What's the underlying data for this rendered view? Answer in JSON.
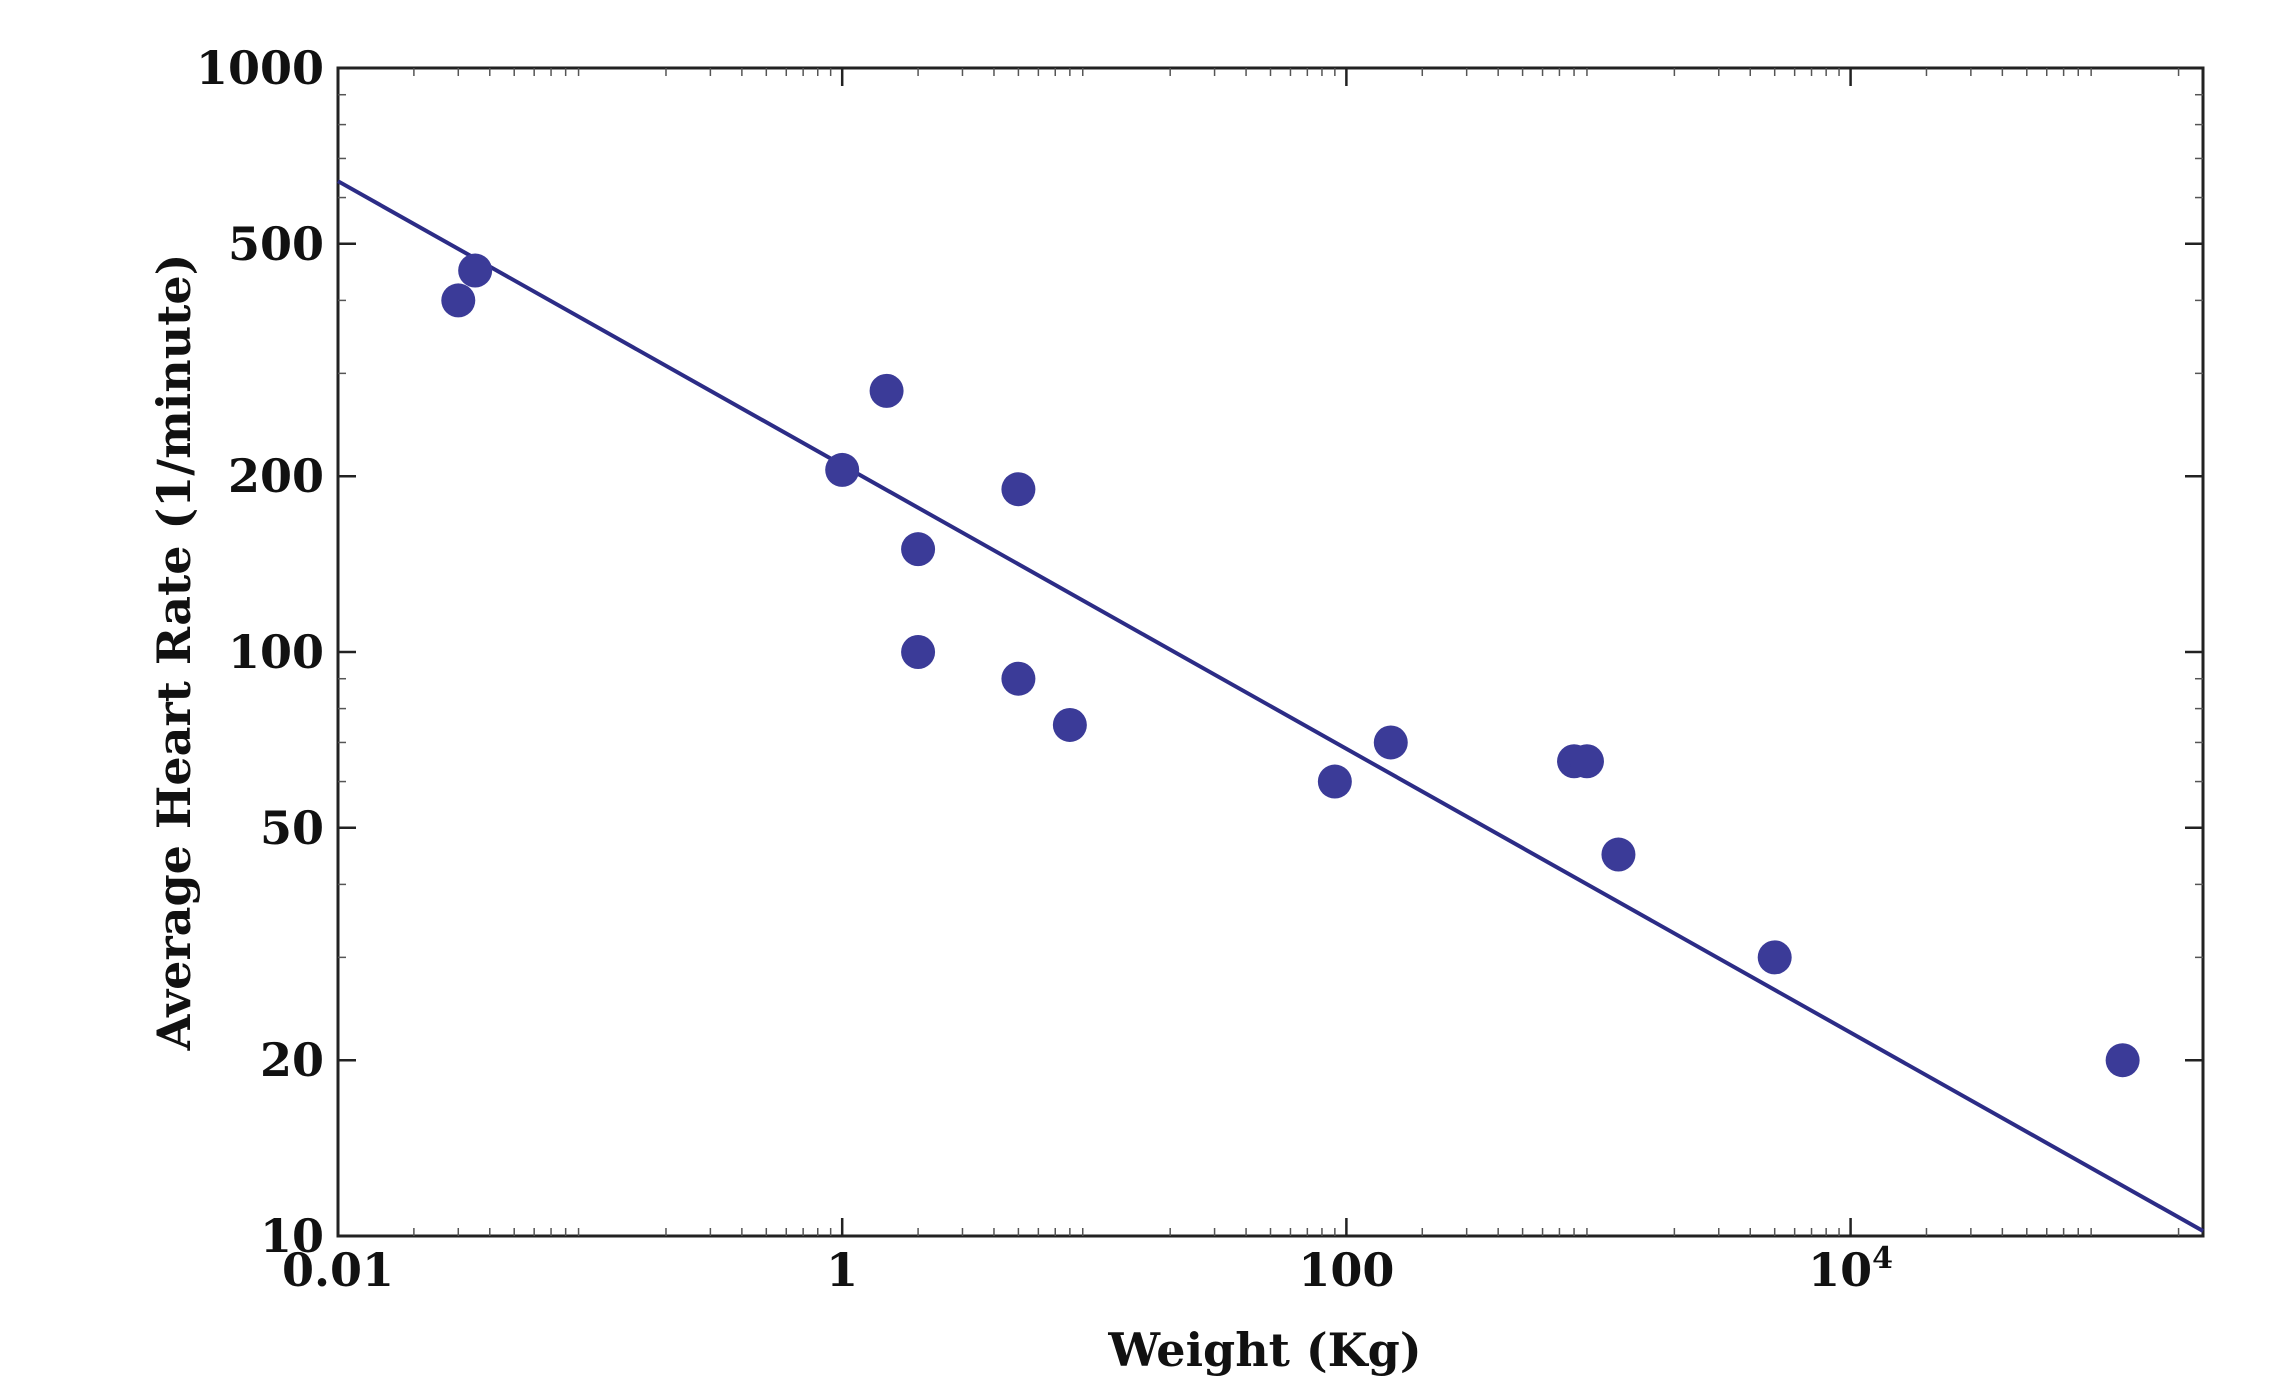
{
  "chart_data": {
    "type": "scatter",
    "title": "",
    "xlabel": "Weight (Kg)",
    "ylabel": "Average Heart Rate (1/minute)",
    "xscale": "log",
    "yscale": "log",
    "xlim": [
      0.01,
      250000
    ],
    "ylim": [
      10,
      1000
    ],
    "grid": false,
    "x_ticks": [
      {
        "value": 0.01,
        "label": "0.01"
      },
      {
        "value": 1,
        "label": "1"
      },
      {
        "value": 100,
        "label": "100"
      },
      {
        "value": 10000,
        "label": "10",
        "sup": "4"
      }
    ],
    "y_ticks": [
      {
        "value": 10,
        "label": "10"
      },
      {
        "value": 20,
        "label": "20"
      },
      {
        "value": 50,
        "label": "50"
      },
      {
        "value": 100,
        "label": "100"
      },
      {
        "value": 200,
        "label": "200"
      },
      {
        "value": 500,
        "label": "500"
      },
      {
        "value": 1000,
        "label": "1000"
      }
    ],
    "points": [
      {
        "x": 0.03,
        "y": 400
      },
      {
        "x": 0.035,
        "y": 450
      },
      {
        "x": 1.0,
        "y": 205
      },
      {
        "x": 1.5,
        "y": 280
      },
      {
        "x": 2.0,
        "y": 150
      },
      {
        "x": 2.0,
        "y": 100
      },
      {
        "x": 5.0,
        "y": 190
      },
      {
        "x": 5.0,
        "y": 90
      },
      {
        "x": 8.0,
        "y": 75
      },
      {
        "x": 90,
        "y": 60
      },
      {
        "x": 150,
        "y": 70
      },
      {
        "x": 800,
        "y": 65
      },
      {
        "x": 900,
        "y": 65
      },
      {
        "x": 1200,
        "y": 45
      },
      {
        "x": 5000,
        "y": 30
      },
      {
        "x": 120000,
        "y": 20
      }
    ],
    "fit_line": {
      "x": [
        0.01,
        250000
      ],
      "y": [
        640,
        10.2
      ]
    },
    "colors": {
      "points": "#3b3b98",
      "line": "#2c2c86",
      "axis": "#222222"
    }
  }
}
